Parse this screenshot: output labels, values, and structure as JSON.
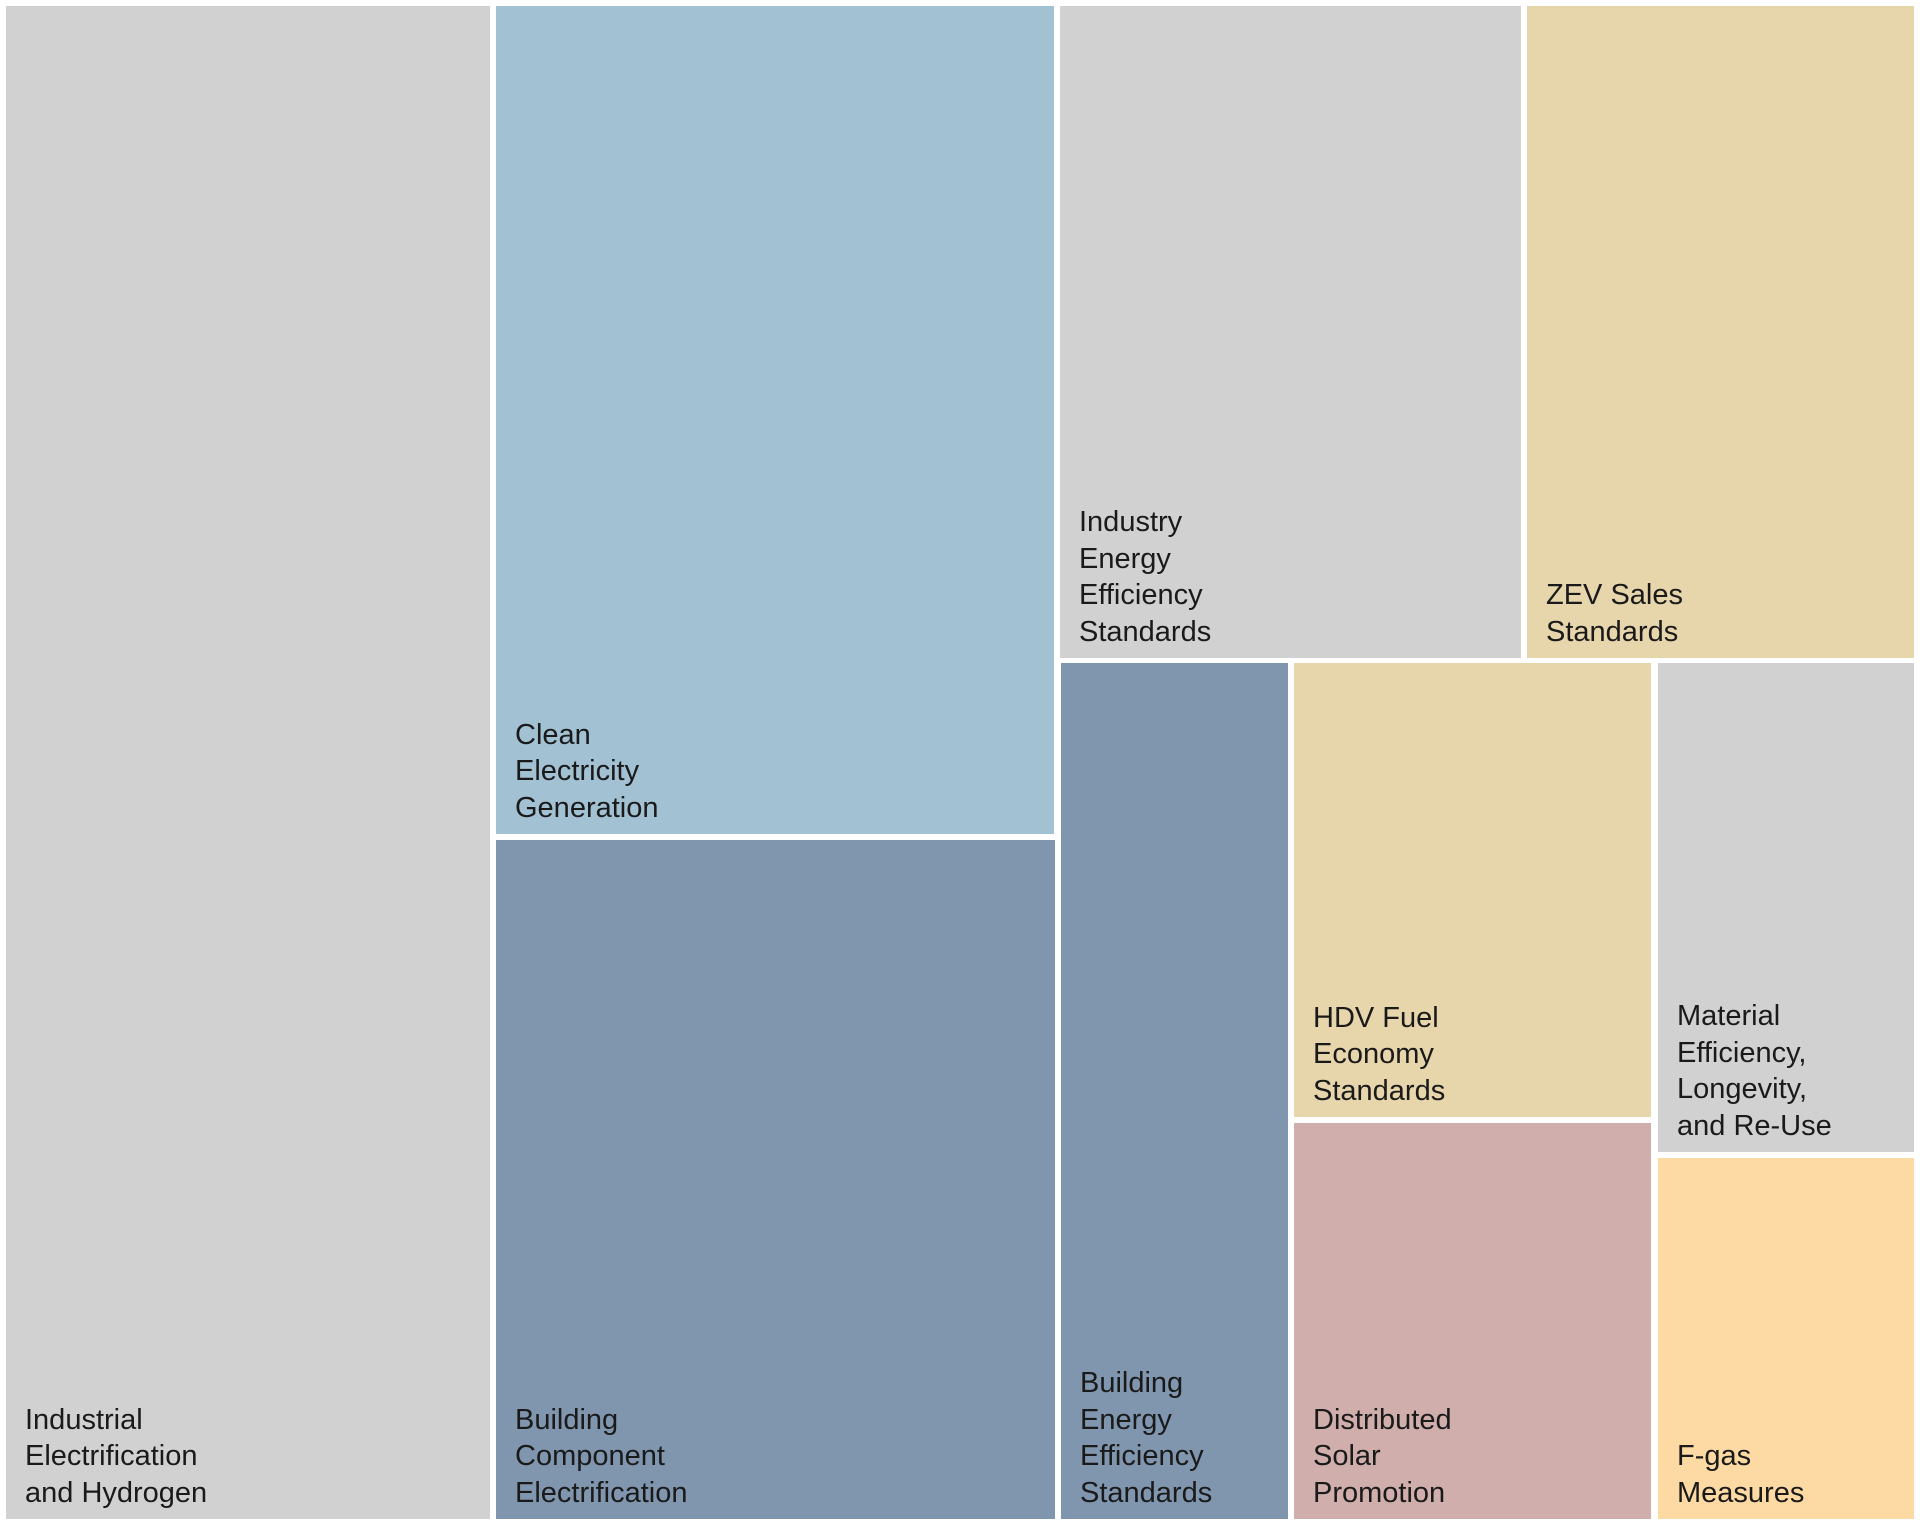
{
  "chart_data": {
    "type": "treemap",
    "colors": {
      "gray": "#d1d1d1",
      "light_blue": "#a2c1d3",
      "slate_blue": "#8096ae",
      "tan": "#e7d5ab",
      "dusty_rose": "#d0aeac",
      "peach": "#fdd9a4"
    },
    "tiles": [
      {
        "label": "Industrial\nElectrification\nand Hydrogen",
        "color": "#d1d1d1"
      },
      {
        "label": "Clean\nElectricity\nGeneration",
        "color": "#a2c1d3"
      },
      {
        "label": "Building\nComponent\nElectrification",
        "color": "#8096ae"
      },
      {
        "label": "Industry\nEnergy\nEfficiency\nStandards",
        "color": "#d1d1d1"
      },
      {
        "label": "ZEV Sales\nStandards",
        "color": "#e7d5ab"
      },
      {
        "label": "Building\nEnergy\nEfficiency\nStandards",
        "color": "#8096ae"
      },
      {
        "label": "HDV Fuel\nEconomy\nStandards",
        "color": "#e7d5ab"
      },
      {
        "label": "Distributed\nSolar\nPromotion",
        "color": "#d0aeac"
      },
      {
        "label": "Material\nEfficiency,\nLongevity,\nand Re-Use",
        "color": "#d1d1d1"
      },
      {
        "label": "F-gas\nMeasures",
        "color": "#fdd9a4"
      }
    ]
  }
}
